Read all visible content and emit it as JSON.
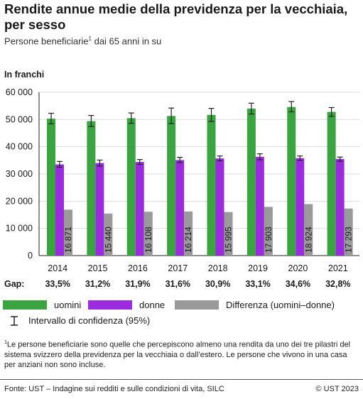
{
  "title": "Rendite annue medie della previdenza per la vecchiaia, per sesso",
  "subtitle": "Persone beneficiarie",
  "subtitle_sup": "1",
  "subtitle_rest": " dai 65 anni in su",
  "unit_label": "In franchi",
  "gap_label": "Gap:",
  "legend": {
    "uomini": "uomini",
    "donne": "donne",
    "differenza": "Differenza (uomini–donne)",
    "ci": "Intervallo di confidenza (95%)"
  },
  "colors": {
    "uomini": "#3aa441",
    "donne": "#9b2cde",
    "differenza": "#9a9a9a",
    "axis": "#222222",
    "grid": "#dddddd"
  },
  "footnote_sup": "1",
  "footnote": "Le persone beneficiarie sono quelle che percepiscono almeno una rendita da uno dei tre pilastri del sistema svizzero della previdenza per la vecchiaia o dall’estero. Le persone che vivono in una casa per anziani non sono incluse.",
  "source": "Fonte: UST – Indagine sui redditi e sulle condizioni di vita, SILC",
  "copyright": "© UST 2023",
  "chart_data": {
    "type": "bar",
    "categories": [
      "2014",
      "2015",
      "2016",
      "2017",
      "2018",
      "2019",
      "2020",
      "2021"
    ],
    "ylim": [
      0,
      60000
    ],
    "yticks": [
      0,
      10000,
      20000,
      30000,
      40000,
      50000,
      60000
    ],
    "ytick_labels": [
      "0",
      "10 000",
      "20 000",
      "30 000",
      "40 000",
      "50 000",
      "60 000"
    ],
    "series": [
      {
        "name": "uomini",
        "values": [
          50300,
          49400,
          50500,
          51300,
          51700,
          54000,
          54600,
          52800
        ],
        "ci_low": [
          48400,
          47400,
          48600,
          48500,
          49300,
          52000,
          52800,
          51200
        ],
        "ci_high": [
          52300,
          51500,
          52400,
          54200,
          54100,
          56000,
          56600,
          54400
        ]
      },
      {
        "name": "donne",
        "values": [
          33500,
          34000,
          34400,
          35100,
          35700,
          36300,
          35800,
          35500
        ],
        "ci_low": [
          32500,
          32900,
          33500,
          34200,
          34800,
          35200,
          35000,
          34700
        ],
        "ci_high": [
          34600,
          35100,
          35300,
          36100,
          36600,
          37400,
          36600,
          36200
        ]
      },
      {
        "name": "Differenza (uomini–donne)",
        "values": [
          16871,
          15440,
          16108,
          16214,
          15995,
          17903,
          18924,
          17293
        ],
        "labels": [
          "16 871",
          "15 440",
          "16 108",
          "16 214",
          "15 995",
          "17 903",
          "18 924",
          "17 293"
        ]
      }
    ],
    "gap": [
      "33,5%",
      "31,2%",
      "31,9%",
      "31,6%",
      "30,9%",
      "33,1%",
      "34,6%",
      "32,8%"
    ]
  }
}
